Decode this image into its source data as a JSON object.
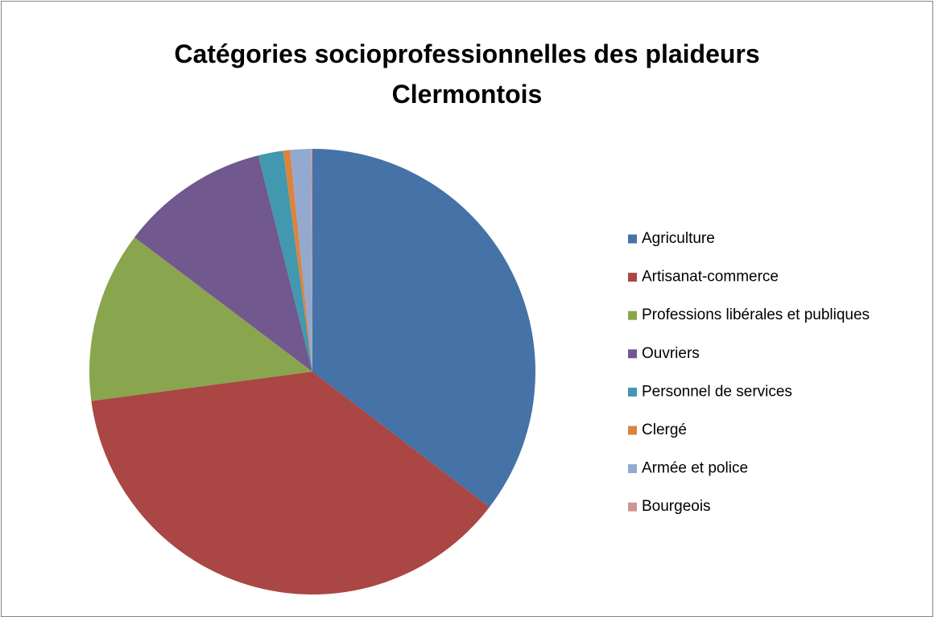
{
  "chart_data": {
    "type": "pie",
    "title": "Catégories socioprofessionnelles des plaideurs Clermontois",
    "categories": [
      "Agriculture",
      "Artisanat-commerce",
      "Professions libérales et publiques",
      "Ouvriers",
      "Personnel de services",
      "Clergé",
      "Armée et police",
      "Bourgeois"
    ],
    "values": [
      35.4,
      37.5,
      12.4,
      10.8,
      1.8,
      0.5,
      1.5,
      0.1
    ],
    "colors": [
      "#4572a7",
      "#aa4643",
      "#89a54e",
      "#71588f",
      "#4198af",
      "#db843d",
      "#93a9cf",
      "#d19392"
    ],
    "legend": "right"
  }
}
